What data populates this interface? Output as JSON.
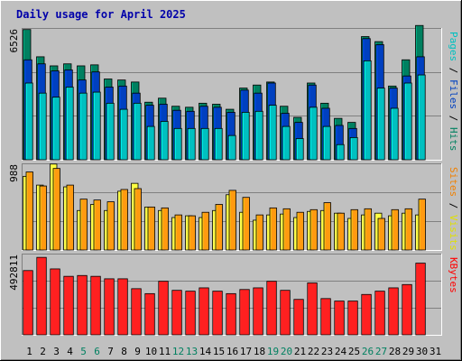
{
  "chart_data": [
    {
      "type": "bar",
      "title": "Daily usage for April 2025",
      "ylabel_parts": [
        {
          "text": "Pages",
          "color": "#00c0c0"
        },
        {
          "text": "Files",
          "color": "#0040c0"
        },
        {
          "text": "Hits",
          "color": "#008060"
        }
      ],
      "ymax_label": "6526",
      "ylim": [
        0,
        6526
      ],
      "grid": true,
      "categories": [
        "1",
        "2",
        "3",
        "4",
        "5",
        "6",
        "7",
        "8",
        "9",
        "10",
        "11",
        "12",
        "13",
        "14",
        "15",
        "16",
        "17",
        "18",
        "19",
        "20",
        "21",
        "22",
        "23",
        "24",
        "25",
        "26",
        "27",
        "28",
        "29",
        "30",
        "31"
      ],
      "weekend_days": [
        "5",
        "6",
        "12",
        "13",
        "19",
        "20",
        "26",
        "27"
      ],
      "series": [
        {
          "name": "Hits",
          "color": "#008060",
          "values": [
            6450,
            5100,
            4650,
            4750,
            4650,
            4700,
            4000,
            3950,
            3850,
            2850,
            3050,
            2650,
            2600,
            2800,
            2750,
            2500,
            3550,
            3700,
            3850,
            2650,
            2100,
            3800,
            2800,
            2050,
            1850,
            6100,
            5850,
            3650,
            4950,
            6650,
            0
          ]
        },
        {
          "name": "Files",
          "color": "#0040c0",
          "values": [
            4950,
            4750,
            4400,
            4450,
            3950,
            4350,
            3600,
            3650,
            3300,
            2700,
            2750,
            2450,
            2400,
            2650,
            2600,
            2350,
            3450,
            3300,
            3800,
            2300,
            1850,
            3700,
            2550,
            1700,
            1550,
            6000,
            5700,
            3550,
            4150,
            5100,
            0
          ]
        },
        {
          "name": "Pages",
          "color": "#00c0c0",
          "values": [
            3800,
            3300,
            3100,
            3600,
            3300,
            3350,
            2800,
            2500,
            2800,
            1650,
            1900,
            1550,
            1550,
            1550,
            1550,
            1200,
            2350,
            2400,
            2700,
            1650,
            1050,
            2600,
            1650,
            750,
            1100,
            4900,
            3550,
            2550,
            3800,
            4200,
            0
          ]
        }
      ]
    },
    {
      "type": "bar",
      "ylabel_parts": [
        {
          "text": "Sites",
          "color": "#f08000"
        },
        {
          "text": "Visits",
          "color": "#e0e000"
        }
      ],
      "ymax_label": "988",
      "ylim": [
        0,
        988
      ],
      "grid": true,
      "series": [
        {
          "name": "Visits",
          "color": "#ffff40",
          "values": [
            840,
            740,
            980,
            720,
            450,
            520,
            450,
            670,
            760,
            490,
            450,
            370,
            390,
            370,
            450,
            630,
            430,
            340,
            400,
            410,
            370,
            440,
            450,
            420,
            360,
            400,
            420,
            390,
            420,
            400,
            0
          ]
        },
        {
          "name": "Sites",
          "color": "#ff9a10",
          "values": [
            890,
            730,
            930,
            740,
            580,
            570,
            550,
            690,
            700,
            490,
            480,
            400,
            390,
            430,
            520,
            680,
            600,
            400,
            480,
            470,
            430,
            460,
            540,
            420,
            460,
            470,
            360,
            460,
            470,
            580,
            0
          ]
        }
      ]
    },
    {
      "type": "bar",
      "ylabel_parts": [
        {
          "text": "KBytes",
          "color": "#ff0000"
        }
      ],
      "ymax_label": "492811",
      "ylim": [
        0,
        492811
      ],
      "grid": true,
      "series": [
        {
          "name": "KBytes",
          "color": "#ff2020",
          "values": [
            390000,
            470000,
            400000,
            355000,
            360000,
            355000,
            340000,
            340000,
            280000,
            250000,
            325000,
            270000,
            265000,
            285000,
            265000,
            250000,
            275000,
            285000,
            325000,
            270000,
            215000,
            315000,
            220000,
            205000,
            205000,
            245000,
            265000,
            285000,
            305000,
            435000,
            0
          ]
        }
      ]
    }
  ]
}
